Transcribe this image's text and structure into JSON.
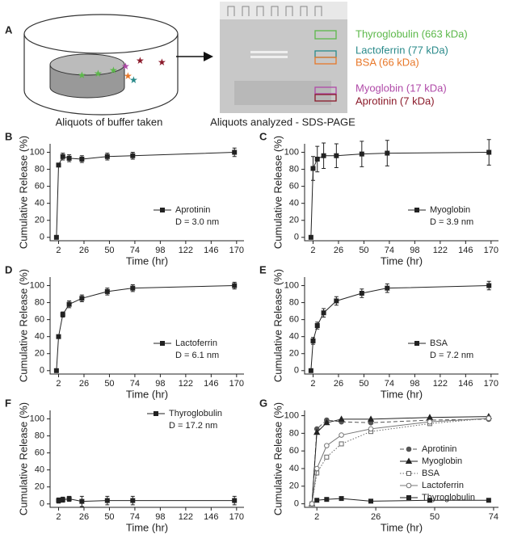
{
  "schematic": {
    "panel": "A",
    "captions": [
      "Aliquots of buffer taken",
      "Aliquots analyzed - SDS-PAGE"
    ],
    "gel_labels": [
      {
        "text": "Thyroglobulin (663 kDa)",
        "color": "#5cb84a"
      },
      {
        "text": "Lactoferrin (77 kDa)",
        "color": "#2a8a8a"
      },
      {
        "text": "BSA (66 kDa)",
        "color": "#e8782a"
      },
      {
        "text": "Myoglobin (17 kDa)",
        "color": "#b04aa8"
      },
      {
        "text": "Aprotinin (7 kDa)",
        "color": "#8b1a2a"
      }
    ]
  },
  "chart_data": [
    {
      "panel": "B",
      "type": "line",
      "xlabel": "Time (hr)",
      "ylabel": "Cumulative Release (%)",
      "xlim": [
        -6,
        177
      ],
      "ylim": [
        -4,
        110
      ],
      "xticks": [
        2,
        26,
        50,
        74,
        98,
        122,
        146,
        170
      ],
      "yticks": [
        0,
        20,
        40,
        60,
        80,
        100
      ],
      "legend": "lower right",
      "annotation": "D = 3.0 nm",
      "series": [
        {
          "name": "Aprotinin",
          "color": "#222222",
          "marker": "filled-square",
          "dash": "solid",
          "x": [
            0,
            2,
            6,
            12,
            24,
            48,
            72,
            168
          ],
          "values": [
            0,
            85,
            95,
            93,
            92,
            95,
            96,
            100
          ],
          "errors": [
            0,
            2,
            4,
            4,
            4,
            4,
            4,
            5
          ]
        }
      ]
    },
    {
      "panel": "C",
      "type": "line",
      "xlabel": "Time (hr)",
      "ylabel": "Cumulative Release (%)",
      "xlim": [
        -6,
        177
      ],
      "ylim": [
        -4,
        110
      ],
      "xticks": [
        2,
        26,
        50,
        74,
        98,
        122,
        146,
        170
      ],
      "yticks": [
        0,
        20,
        40,
        60,
        80,
        100
      ],
      "legend": "lower right",
      "annotation": "D = 3.9 nm",
      "series": [
        {
          "name": "Myoglobin",
          "color": "#222222",
          "marker": "filled-square",
          "dash": "solid",
          "x": [
            0,
            2,
            6,
            12,
            24,
            48,
            72,
            168
          ],
          "values": [
            0,
            81,
            92,
            96,
            96,
            98,
            99,
            100
          ],
          "errors": [
            0,
            14,
            15,
            15,
            14,
            15,
            15,
            15
          ]
        }
      ]
    },
    {
      "panel": "D",
      "type": "line",
      "xlabel": "Time (hr)",
      "ylabel": "Cumulative Release (%)",
      "xlim": [
        -6,
        177
      ],
      "ylim": [
        -4,
        110
      ],
      "xticks": [
        2,
        26,
        50,
        74,
        98,
        122,
        146,
        170
      ],
      "yticks": [
        0,
        20,
        40,
        60,
        80,
        100
      ],
      "legend": "lower right",
      "annotation": "D = 6.1 nm",
      "series": [
        {
          "name": "Lactoferrin",
          "color": "#222222",
          "marker": "filled-square",
          "dash": "solid",
          "x": [
            0,
            2,
            6,
            12,
            24,
            48,
            72,
            168
          ],
          "values": [
            0,
            40,
            66,
            78,
            85,
            93,
            97,
            100
          ],
          "errors": [
            0,
            2,
            3,
            4,
            4,
            4,
            4,
            4
          ]
        }
      ]
    },
    {
      "panel": "E",
      "type": "line",
      "xlabel": "Time (hr)",
      "ylabel": "Cumulative Release (%)",
      "xlim": [
        -6,
        177
      ],
      "ylim": [
        -4,
        110
      ],
      "xticks": [
        2,
        26,
        50,
        74,
        98,
        122,
        146,
        170
      ],
      "yticks": [
        0,
        20,
        40,
        60,
        80,
        100
      ],
      "legend": "lower right",
      "annotation": "D = 7.2 nm",
      "series": [
        {
          "name": "BSA",
          "color": "#222222",
          "marker": "filled-square",
          "dash": "solid",
          "x": [
            0,
            2,
            6,
            12,
            24,
            48,
            72,
            168
          ],
          "values": [
            0,
            35,
            53,
            68,
            82,
            91,
            97,
            100
          ],
          "errors": [
            0,
            4,
            4,
            5,
            5,
            5,
            5,
            5
          ]
        }
      ]
    },
    {
      "panel": "F",
      "type": "line",
      "xlabel": "Time (hr)",
      "ylabel": "Cumulative Release (%)",
      "xlim": [
        -6,
        177
      ],
      "ylim": [
        -4,
        110
      ],
      "xticks": [
        2,
        26,
        50,
        74,
        98,
        122,
        146,
        170
      ],
      "yticks": [
        0,
        20,
        40,
        60,
        80,
        100
      ],
      "legend": "upper right",
      "annotation": "D = 17.2 nm",
      "series": [
        {
          "name": "Thyroglobulin",
          "color": "#222222",
          "marker": "filled-square",
          "dash": "solid",
          "x": [
            2,
            6,
            12,
            24,
            48,
            72,
            168
          ],
          "values": [
            4,
            5,
            6,
            3,
            4,
            4,
            4
          ],
          "errors": [
            3,
            3,
            3,
            6,
            5,
            5,
            5
          ]
        }
      ]
    },
    {
      "panel": "G",
      "type": "line",
      "xlabel": "Time (hr)",
      "ylabel": "Cumulative Release (%)",
      "xlim": [
        -3,
        76
      ],
      "ylim": [
        -4,
        106
      ],
      "xticks": [
        2,
        26,
        50,
        74
      ],
      "yticks": [
        0,
        20,
        40,
        60,
        80,
        100
      ],
      "legend": "center right",
      "series": [
        {
          "name": "Aprotinin",
          "color": "#555555",
          "marker": "filled-circle",
          "dash": "dashed",
          "x": [
            0,
            2,
            6,
            12,
            24,
            48,
            72
          ],
          "values": [
            0,
            85,
            95,
            93,
            92,
            95,
            96
          ]
        },
        {
          "name": "Myoglobin",
          "color": "#222222",
          "marker": "filled-triangle",
          "dash": "solid",
          "x": [
            0,
            2,
            6,
            12,
            24,
            48,
            72
          ],
          "values": [
            0,
            81,
            92,
            96,
            96,
            98,
            99
          ]
        },
        {
          "name": "BSA",
          "color": "#666666",
          "marker": "open-square",
          "dash": "dotted",
          "x": [
            0,
            2,
            6,
            12,
            24,
            48,
            72
          ],
          "values": [
            0,
            35,
            53,
            68,
            82,
            91,
            97
          ]
        },
        {
          "name": "Lactoferrin",
          "color": "#777777",
          "marker": "open-circle",
          "dash": "solid",
          "x": [
            0,
            2,
            6,
            12,
            24,
            48,
            72
          ],
          "values": [
            0,
            40,
            66,
            78,
            85,
            93,
            97
          ]
        },
        {
          "name": "Thyroglobulin",
          "color": "#222222",
          "marker": "filled-square",
          "dash": "solid",
          "x": [
            2,
            6,
            12,
            24,
            48,
            72
          ],
          "values": [
            4,
            5,
            6,
            3,
            4,
            4
          ]
        }
      ]
    }
  ]
}
